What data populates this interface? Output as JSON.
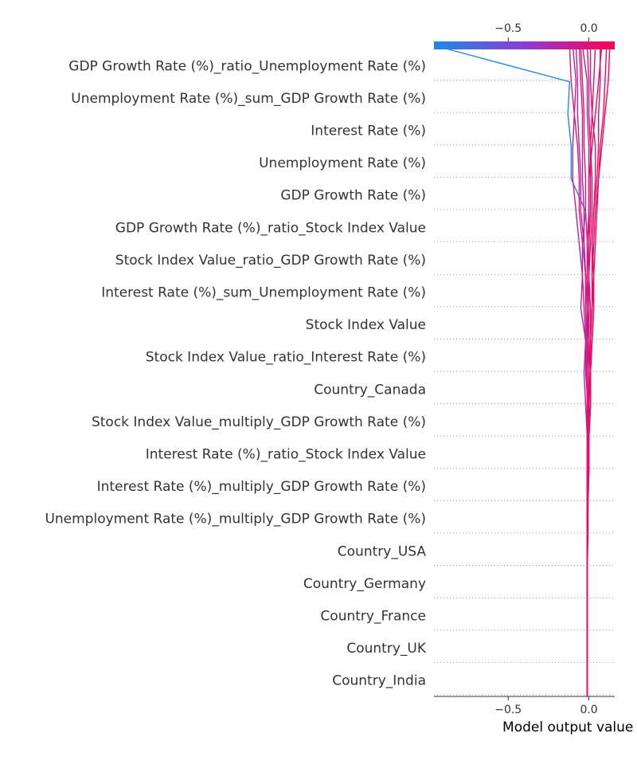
{
  "chart_data": {
    "type": "line",
    "xlabel": "Model output value",
    "xlim": [
      -0.96,
      0.16
    ],
    "x_ticks": [
      -0.5,
      0.0
    ],
    "x_tick_labels": [
      "−0.5",
      "0.0"
    ],
    "grid": true,
    "colorbar": {
      "low_color": "#1e88e5",
      "mid_color": "#8a3cd6",
      "high_color": "#ff0052"
    },
    "features": [
      "GDP Growth Rate (%)_ratio_Unemployment Rate (%)",
      "Unemployment Rate (%)_sum_GDP Growth Rate (%)",
      "Interest Rate (%)",
      "Unemployment Rate (%)",
      "GDP Growth Rate (%)",
      "GDP Growth Rate (%)_ratio_Stock Index Value",
      "Stock Index Value_ratio_GDP Growth Rate (%)",
      "Interest Rate (%)_sum_Unemployment Rate (%)",
      "Stock Index Value",
      "Stock Index Value_ratio_Interest Rate (%)",
      "Country_Canada",
      "Stock Index Value_multiply_GDP Growth Rate (%)",
      "Interest Rate (%)_ratio_Stock Index Value",
      "Interest Rate (%)_multiply_GDP Growth Rate (%)",
      "Unemployment Rate (%)_multiply_GDP Growth Rate (%)",
      "Country_USA",
      "Country_Germany",
      "Country_France",
      "Country_UK",
      "Country_India"
    ],
    "base_value": -0.01,
    "series": [
      {
        "values": [
          -0.01,
          -0.01,
          -0.01,
          -0.01,
          -0.01,
          -0.01,
          -0.01,
          -0.01,
          -0.01,
          -0.01,
          -0.015,
          -0.015,
          -0.02,
          -0.02,
          -0.04,
          -0.02,
          -0.11,
          -0.11,
          -0.13,
          -0.12,
          -0.96
        ]
      },
      {
        "values": [
          -0.01,
          -0.01,
          -0.01,
          -0.01,
          -0.01,
          -0.005,
          -0.005,
          -0.0,
          -0.01,
          -0.005,
          -0.02,
          -0.02,
          -0.03,
          -0.04,
          -0.06,
          -0.08,
          -0.1,
          -0.1,
          -0.09,
          -0.11,
          -0.12
        ]
      },
      {
        "values": [
          -0.01,
          -0.01,
          -0.01,
          -0.01,
          -0.01,
          -0.01,
          -0.01,
          -0.01,
          -0.01,
          -0.02,
          -0.03,
          -0.02,
          -0.05,
          -0.04,
          -0.04,
          -0.06,
          -0.06,
          -0.07,
          -0.09,
          -0.08,
          -0.1
        ]
      },
      {
        "values": [
          -0.01,
          -0.01,
          -0.01,
          -0.01,
          -0.01,
          -0.01,
          -0.005,
          -0.0,
          0.0,
          -0.01,
          -0.01,
          0.0,
          -0.01,
          -0.02,
          -0.03,
          -0.05,
          -0.05,
          -0.06,
          -0.07,
          -0.07,
          -0.08
        ]
      },
      {
        "values": [
          -0.01,
          -0.01,
          -0.01,
          -0.01,
          -0.01,
          -0.01,
          -0.01,
          -0.01,
          -0.0,
          0.0,
          -0.01,
          -0.01,
          -0.02,
          -0.02,
          -0.03,
          -0.03,
          -0.04,
          -0.04,
          -0.04,
          -0.05,
          -0.06
        ]
      },
      {
        "values": [
          -0.01,
          -0.01,
          -0.01,
          -0.01,
          -0.01,
          -0.01,
          -0.01,
          -0.01,
          -0.01,
          -0.01,
          -0.01,
          -0.01,
          -0.0,
          -0.01,
          -0.01,
          -0.02,
          -0.02,
          -0.03,
          -0.03,
          -0.04,
          -0.05
        ]
      },
      {
        "values": [
          -0.01,
          -0.01,
          -0.01,
          -0.01,
          -0.01,
          -0.01,
          -0.01,
          -0.01,
          -0.01,
          -0.01,
          -0.01,
          -0.01,
          -0.01,
          -0.01,
          -0.01,
          -0.0,
          0.0,
          -0.0,
          -0.01,
          -0.01,
          -0.04
        ]
      },
      {
        "values": [
          -0.01,
          -0.01,
          -0.01,
          -0.01,
          -0.01,
          -0.01,
          -0.01,
          -0.005,
          0.0,
          0.0,
          0.0,
          0.01,
          0.01,
          0.0,
          0.01,
          0.02,
          0.02,
          0.01,
          0.0,
          -0.0,
          -0.01
        ]
      },
      {
        "values": [
          -0.01,
          -0.01,
          -0.01,
          -0.01,
          -0.01,
          -0.01,
          -0.01,
          -0.0,
          0.0,
          0.01,
          0.01,
          0.01,
          0.02,
          0.02,
          0.02,
          0.03,
          0.04,
          0.04,
          0.02,
          0.01,
          0.01
        ]
      },
      {
        "values": [
          -0.01,
          -0.01,
          -0.01,
          -0.01,
          -0.01,
          -0.01,
          -0.01,
          -0.0,
          0.0,
          0.0,
          0.01,
          0.01,
          0.02,
          0.03,
          0.02,
          0.03,
          0.05,
          0.06,
          0.06,
          0.07,
          0.07
        ]
      },
      {
        "values": [
          -0.01,
          -0.01,
          -0.01,
          -0.01,
          -0.01,
          -0.01,
          -0.01,
          -0.0,
          0.0,
          0.01,
          0.01,
          0.02,
          0.03,
          0.02,
          0.03,
          0.04,
          0.06,
          0.08,
          0.1,
          0.12,
          0.13
        ]
      },
      {
        "values": [
          -0.01,
          -0.01,
          -0.01,
          -0.01,
          -0.01,
          -0.01,
          -0.01,
          -0.0,
          0.0,
          0.01,
          0.01,
          0.02,
          0.03,
          0.03,
          0.04,
          0.05,
          0.06,
          0.07,
          0.09,
          0.1,
          0.11
        ]
      },
      {
        "values": [
          -0.01,
          -0.01,
          -0.01,
          -0.01,
          -0.01,
          -0.01,
          -0.01,
          -0.0,
          -0.0,
          -0.0,
          0.0,
          -0.0,
          -0.0,
          -0.01,
          -0.0,
          0.0,
          0.0,
          0.02,
          0.04,
          0.06,
          0.08
        ]
      },
      {
        "values": [
          -0.01,
          -0.01,
          -0.01,
          -0.01,
          -0.01,
          -0.01,
          -0.01,
          -0.01,
          -0.005,
          -0.0,
          0.0,
          0.0,
          0.0,
          -0.0,
          0.0,
          0.01,
          0.01,
          0.01,
          0.02,
          0.03,
          0.04
        ]
      }
    ]
  }
}
